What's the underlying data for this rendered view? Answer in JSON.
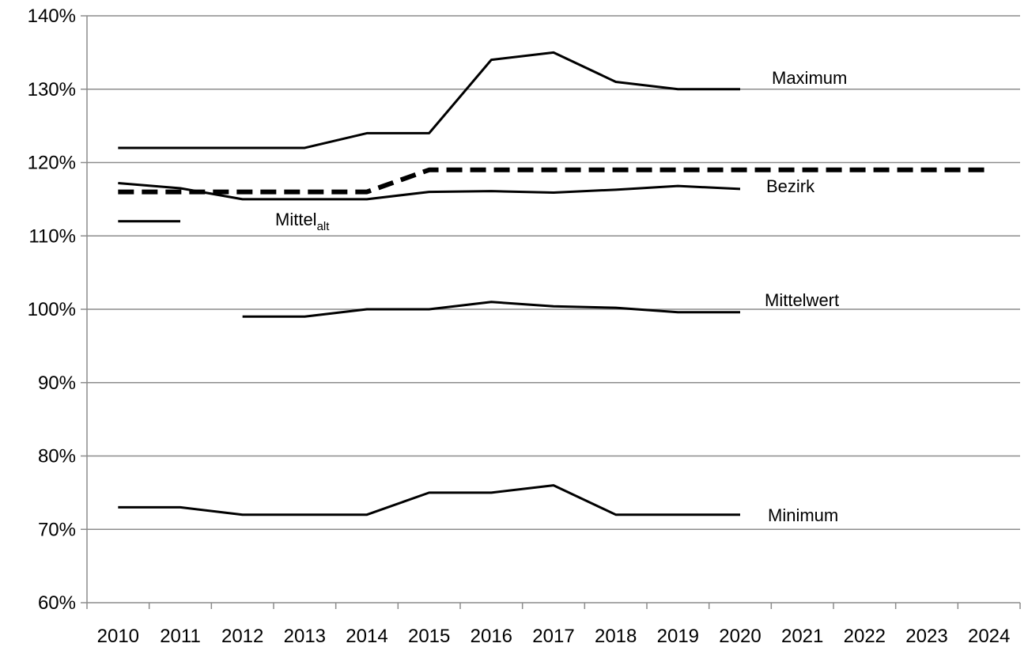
{
  "chart_data": {
    "type": "line",
    "title": "",
    "xlabel": "",
    "ylabel": "",
    "categories": [
      "2010",
      "2011",
      "2012",
      "2013",
      "2014",
      "2015",
      "2016",
      "2017",
      "2018",
      "2019",
      "2020",
      "2021",
      "2022",
      "2023",
      "2024"
    ],
    "ylim": [
      0.6,
      1.4
    ],
    "ytick_values": [
      0.6,
      0.7,
      0.8,
      0.9,
      1.0,
      1.1,
      1.2,
      1.3,
      1.4
    ],
    "ytick_labels": [
      "60%",
      "70%",
      "80%",
      "90%",
      "100%",
      "110%",
      "120%",
      "130%",
      "140%"
    ],
    "grid": "horizontal",
    "legend": "inline labels",
    "series": [
      {
        "name": "Maximum",
        "style": "solid",
        "color": "#000000",
        "values": [
          1.22,
          1.22,
          1.22,
          1.22,
          1.24,
          1.24,
          1.34,
          1.35,
          1.31,
          1.3,
          1.3,
          null,
          null,
          null,
          null
        ]
      },
      {
        "name": "Bezirk",
        "style": "dashed",
        "color": "#000000",
        "values": [
          1.16,
          1.16,
          1.16,
          1.16,
          1.16,
          1.19,
          1.19,
          1.19,
          1.19,
          1.19,
          1.19,
          1.19,
          1.19,
          1.19,
          1.19
        ]
      },
      {
        "name": "",
        "style": "solid",
        "color": "#000000",
        "values": [
          1.172,
          1.165,
          1.15,
          1.15,
          1.15,
          1.16,
          1.161,
          1.159,
          1.163,
          1.168,
          1.164,
          null,
          null,
          null,
          null
        ]
      },
      {
        "name": "Mittelalt",
        "style": "solid",
        "color": "#000000",
        "values": [
          1.12,
          1.12,
          null,
          null,
          null,
          null,
          null,
          null,
          null,
          null,
          null,
          null,
          null,
          null,
          null
        ]
      },
      {
        "name": "Mittelwert",
        "style": "solid",
        "color": "#000000",
        "values": [
          null,
          null,
          0.99,
          0.99,
          1.0,
          1.0,
          1.01,
          1.004,
          1.002,
          0.996,
          0.996,
          null,
          null,
          null,
          null
        ]
      },
      {
        "name": "Minimum",
        "style": "solid",
        "color": "#000000",
        "values": [
          0.73,
          0.73,
          0.72,
          0.72,
          0.72,
          0.75,
          0.75,
          0.76,
          0.72,
          0.72,
          0.72,
          null,
          null,
          null,
          null
        ]
      }
    ],
    "labels": {
      "maximum": "Maximum",
      "bezirk": "Bezirk",
      "mittel_base": "Mittel",
      "mittel_sub": "alt",
      "mittelwert": "Mittelwert",
      "minimum": "Minimum"
    }
  }
}
